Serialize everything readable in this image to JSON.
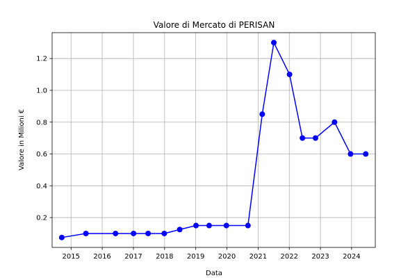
{
  "chart_data": {
    "type": "line",
    "title": "Valore di Mercato di PERISAN",
    "xlabel": "Data",
    "ylabel": "Valore in Milioni €",
    "grid": true,
    "line_color": "#0000ff",
    "marker_color": "#0000ff",
    "xlim": [
      "2014-05-24",
      "2024-10-05"
    ],
    "ylim": [
      0.0125,
      1.3625
    ],
    "x_ticks": [
      "2015",
      "2016",
      "2017",
      "2018",
      "2019",
      "2020",
      "2021",
      "2022",
      "2023",
      "2024"
    ],
    "y_ticks": [
      "0.2",
      "0.4",
      "0.6",
      "0.8",
      "1.0",
      "1.2"
    ],
    "series": [
      {
        "points": [
          {
            "x": "2014-09-14",
            "y": 0.075
          },
          {
            "x": "2015-06-24",
            "y": 0.1
          },
          {
            "x": "2016-06-05",
            "y": 0.1
          },
          {
            "x": "2017-01-02",
            "y": 0.1
          },
          {
            "x": "2017-06-22",
            "y": 0.1
          },
          {
            "x": "2017-12-28",
            "y": 0.1
          },
          {
            "x": "2018-06-27",
            "y": 0.125
          },
          {
            "x": "2019-01-04",
            "y": 0.15
          },
          {
            "x": "2019-06-07",
            "y": 0.15
          },
          {
            "x": "2019-12-26",
            "y": 0.15
          },
          {
            "x": "2020-09-04",
            "y": 0.15
          },
          {
            "x": "2021-02-18",
            "y": 0.85
          },
          {
            "x": "2021-07-04",
            "y": 1.3
          },
          {
            "x": "2022-01-04",
            "y": 1.1
          },
          {
            "x": "2022-06-04",
            "y": 0.7
          },
          {
            "x": "2022-11-04",
            "y": 0.7
          },
          {
            "x": "2023-06-15",
            "y": 0.8
          },
          {
            "x": "2023-12-20",
            "y": 0.6
          },
          {
            "x": "2024-06-15",
            "y": 0.6
          }
        ]
      }
    ]
  }
}
